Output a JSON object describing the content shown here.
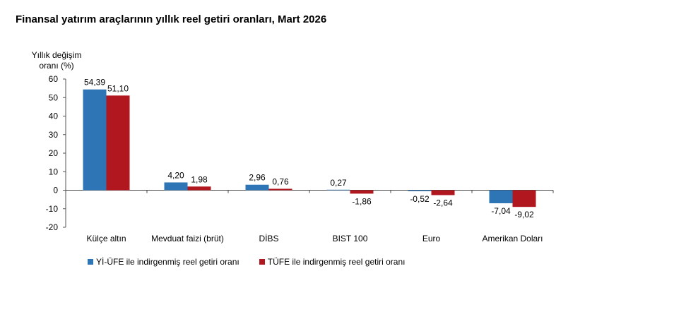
{
  "chart_data": {
    "type": "bar",
    "title": "Finansal yatırım araçlarının yıllık reel getiri oranları, Mart 2026",
    "ylabel_line1": "Yıllık değişim",
    "ylabel_line2": "oranı (%)",
    "xlabel": "",
    "ylim": [
      -20,
      60
    ],
    "yticks": [
      60,
      50,
      40,
      30,
      20,
      10,
      0,
      -10,
      -20
    ],
    "categories": [
      "Külçe altın",
      "Mevduat faizi (brüt)",
      "DİBS",
      "BIST 100",
      "Euro",
      "Amerikan Doları"
    ],
    "series": [
      {
        "name": "Yİ-ÜFE ile indirgenmiş reel getiri oranı",
        "color": "#2E75B6",
        "values": [
          54.39,
          4.2,
          2.96,
          0.27,
          -0.52,
          -7.04
        ],
        "labels": [
          "54,39",
          "4,20",
          "2,96",
          "0,27",
          "-0,52",
          "-7,04"
        ]
      },
      {
        "name": "TÜFE ile indirgenmiş reel getiri oranı",
        "color": "#B0171F",
        "values": [
          51.1,
          1.98,
          0.76,
          -1.86,
          -2.64,
          -9.02
        ],
        "labels": [
          "51,10",
          "1,98",
          "0,76",
          "-1,86",
          "-2,64",
          "-9,02"
        ]
      }
    ],
    "grid": false,
    "legend_position": "bottom-left"
  }
}
